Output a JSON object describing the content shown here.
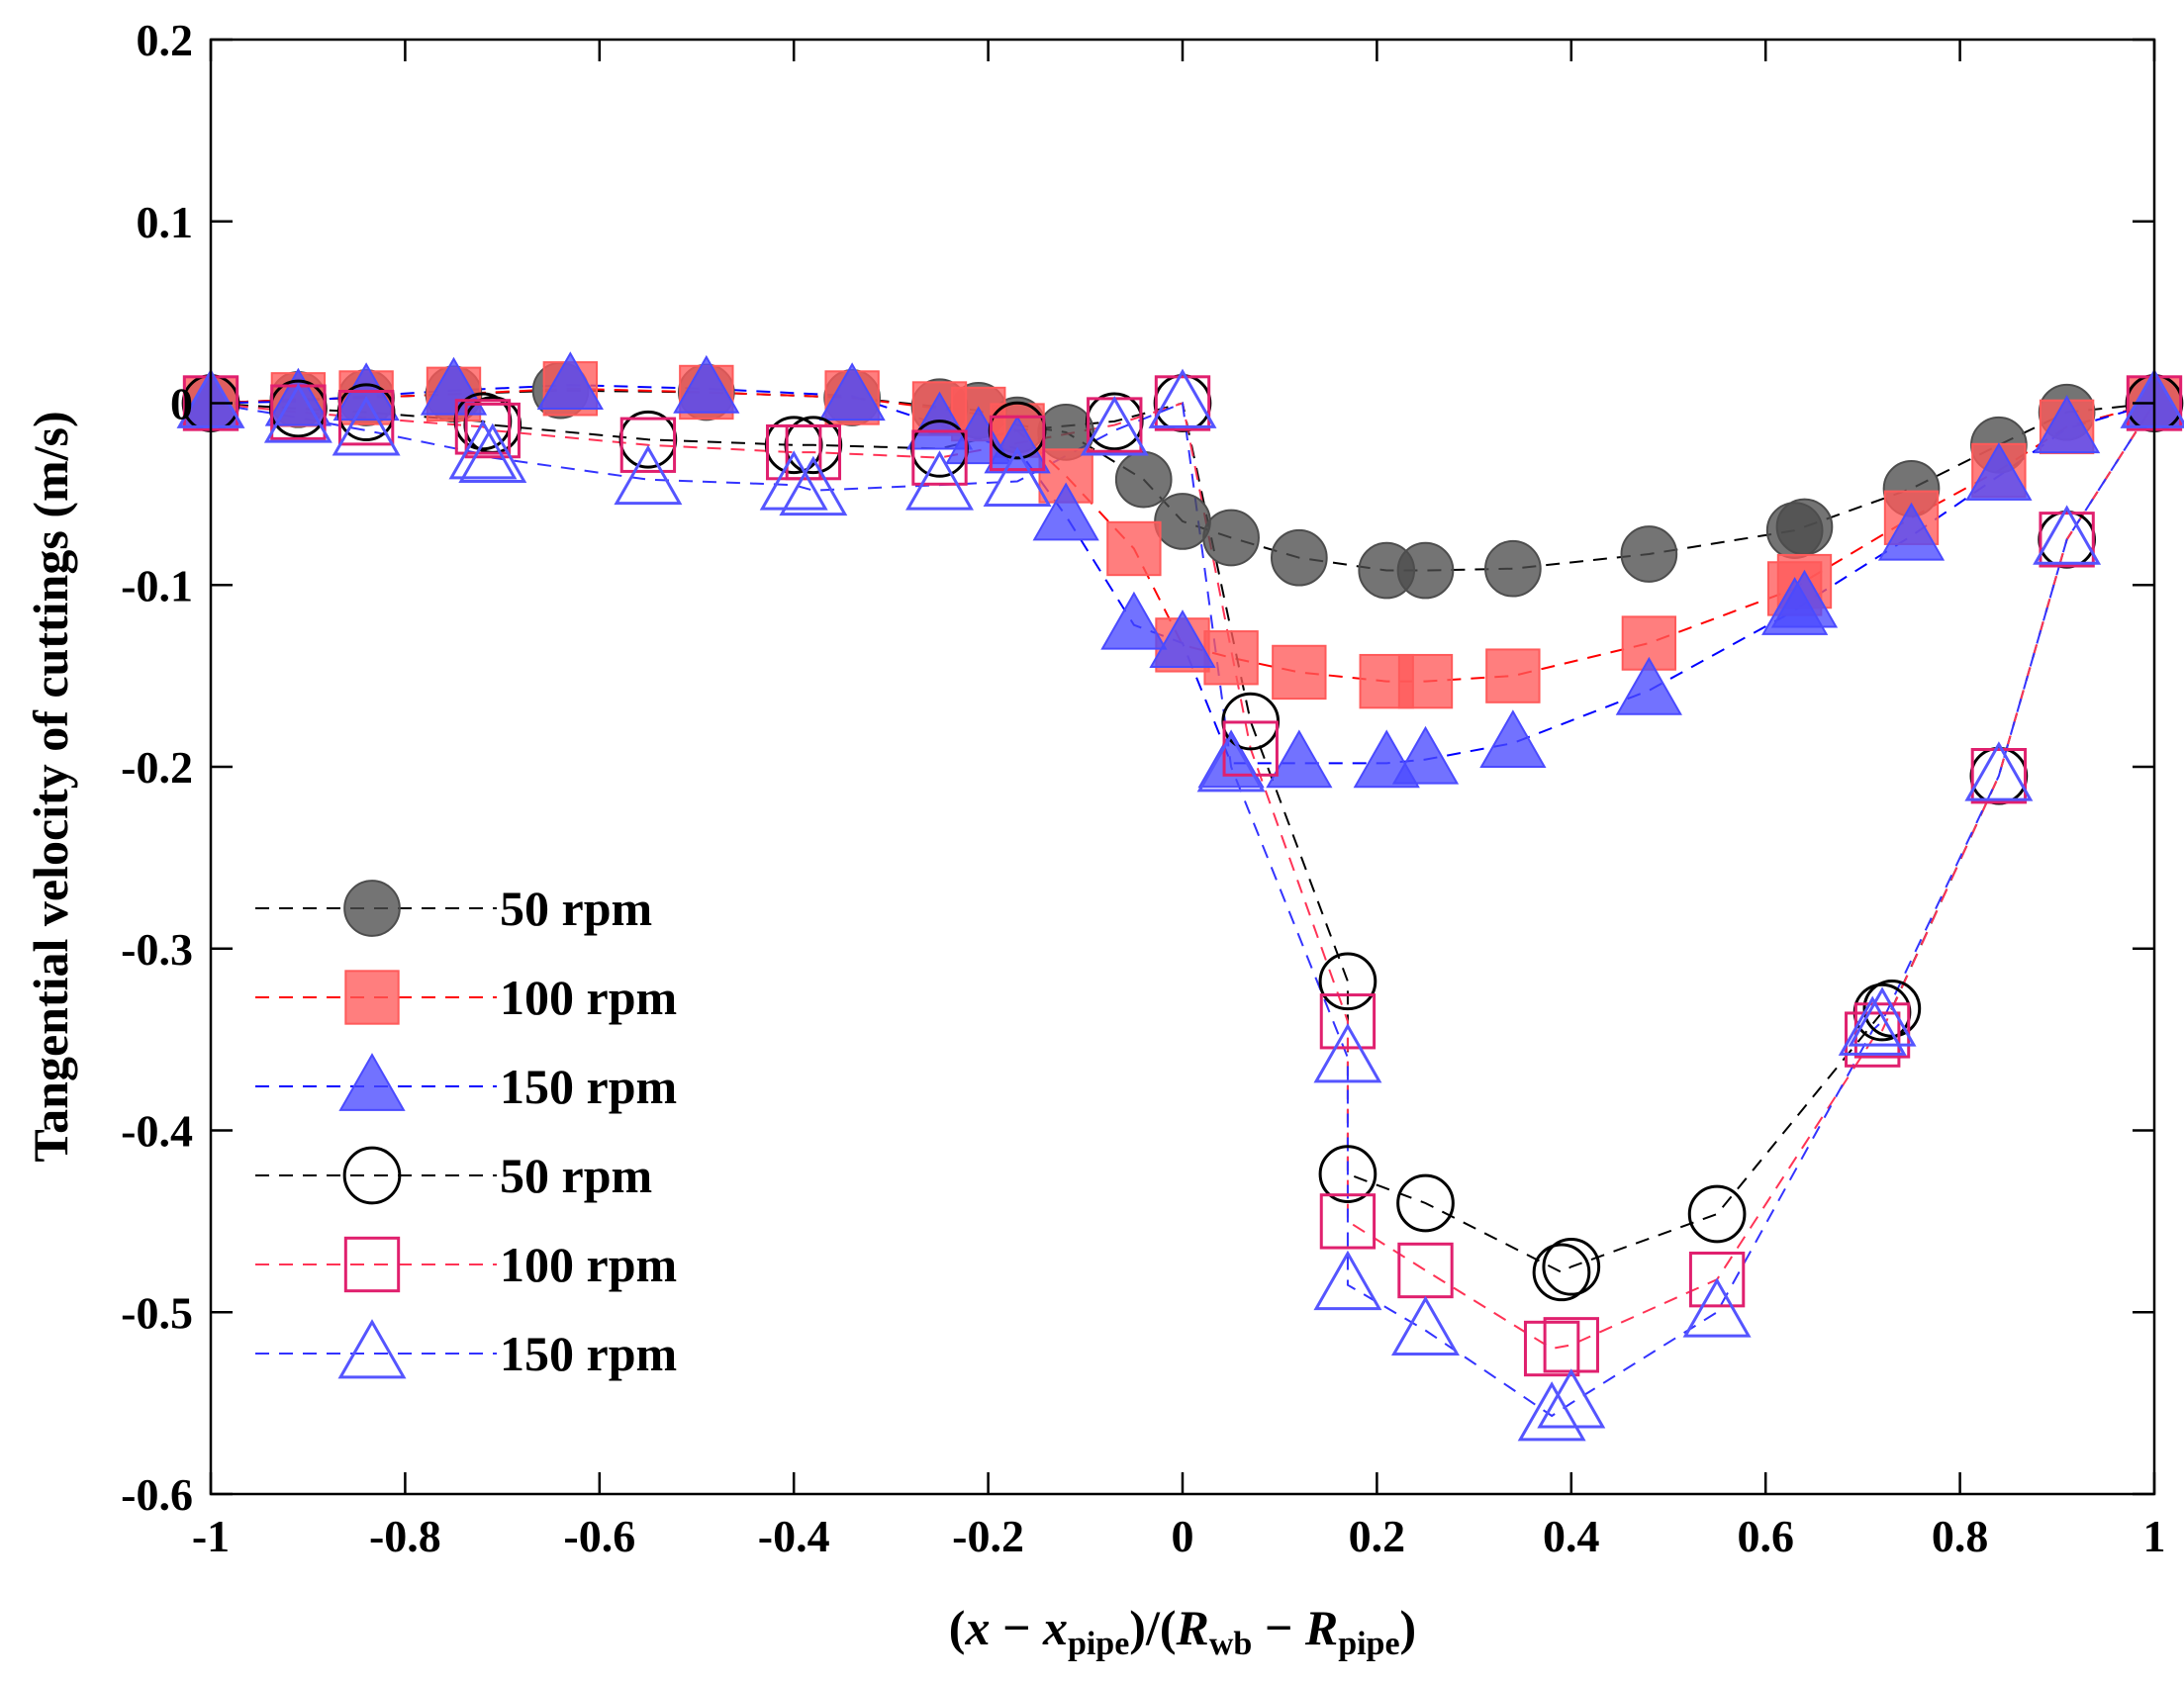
{
  "chart_data": {
    "type": "scatter",
    "title": "",
    "xlabel": {
      "parts": [
        {
          "t": "(",
          "italic": false,
          "sub": false
        },
        {
          "t": "x",
          "italic": true,
          "sub": false
        },
        {
          "t": " − ",
          "italic": false,
          "sub": false
        },
        {
          "t": "x",
          "italic": true,
          "sub": false
        },
        {
          "t": "pipe",
          "italic": false,
          "sub": true
        },
        {
          "t": ")/(",
          "italic": false,
          "sub": false
        },
        {
          "t": "R",
          "italic": true,
          "sub": false
        },
        {
          "t": "wb",
          "italic": false,
          "sub": true
        },
        {
          "t": " − ",
          "italic": false,
          "sub": false
        },
        {
          "t": "R",
          "italic": true,
          "sub": false
        },
        {
          "t": "pipe",
          "italic": false,
          "sub": true
        },
        {
          "t": ")",
          "italic": false,
          "sub": false
        }
      ]
    },
    "ylabel": "Tangential velocity of cuttings (m/s)",
    "xlim": [
      -1,
      1
    ],
    "ylim": [
      -0.6,
      0.2
    ],
    "xticks": [
      {
        "v": -1,
        "label": "-1"
      },
      {
        "v": -0.8,
        "label": "-0.8"
      },
      {
        "v": -0.6,
        "label": "-0.6"
      },
      {
        "v": -0.4,
        "label": "-0.4"
      },
      {
        "v": -0.2,
        "label": "-0.2"
      },
      {
        "v": 0,
        "label": "0"
      },
      {
        "v": 0.2,
        "label": "0.2"
      },
      {
        "v": 0.4,
        "label": "0.4"
      },
      {
        "v": 0.6,
        "label": "0.6"
      },
      {
        "v": 0.8,
        "label": "0.8"
      },
      {
        "v": 1,
        "label": "1"
      }
    ],
    "yticks": [
      {
        "v": 0.2,
        "label": "0.2"
      },
      {
        "v": 0.1,
        "label": "0.1"
      },
      {
        "v": 0,
        "label": "0"
      },
      {
        "v": -0.1,
        "label": "-0.1"
      },
      {
        "v": -0.2,
        "label": "-0.2"
      },
      {
        "v": -0.3,
        "label": "-0.3"
      },
      {
        "v": -0.4,
        "label": "-0.4"
      },
      {
        "v": -0.5,
        "label": "-0.5"
      },
      {
        "v": -0.6,
        "label": "-0.6"
      }
    ],
    "legend_position": "left-middle",
    "series": [
      {
        "name": "50 rpm",
        "marker": "circle",
        "filled": true,
        "line_color": "#000000",
        "marker_color": "#4d4d4d",
        "x": [
          -1,
          -0.91,
          -0.84,
          -0.75,
          -0.64,
          -0.49,
          -0.34,
          -0.25,
          -0.21,
          -0.17,
          -0.12,
          -0.04,
          0,
          0.05,
          0.12,
          0.21,
          0.25,
          0.34,
          0.48,
          0.63,
          0.64,
          0.75,
          0.84,
          0.91,
          1
        ],
        "y": [
          0,
          0.002,
          0.003,
          0.005,
          0.007,
          0.006,
          0.003,
          -0.002,
          -0.004,
          -0.012,
          -0.016,
          -0.042,
          -0.065,
          -0.074,
          -0.085,
          -0.092,
          -0.092,
          -0.091,
          -0.083,
          -0.07,
          -0.068,
          -0.047,
          -0.023,
          -0.005,
          0
        ]
      },
      {
        "name": "100 rpm",
        "marker": "square",
        "filled": true,
        "line_color": "#ff0000",
        "marker_color": "#ff5a5a",
        "x": [
          -1,
          -0.91,
          -0.84,
          -0.75,
          -0.63,
          -0.49,
          -0.34,
          -0.25,
          -0.21,
          -0.17,
          -0.12,
          -0.05,
          0,
          0.05,
          0.12,
          0.21,
          0.25,
          0.34,
          0.48,
          0.63,
          0.64,
          0.75,
          0.84,
          0.91,
          1
        ],
        "y": [
          0,
          0.002,
          0.003,
          0.005,
          0.008,
          0.006,
          0.003,
          -0.003,
          -0.006,
          -0.015,
          -0.04,
          -0.08,
          -0.133,
          -0.14,
          -0.148,
          -0.153,
          -0.153,
          -0.15,
          -0.132,
          -0.102,
          -0.098,
          -0.063,
          -0.037,
          -0.013,
          0
        ]
      },
      {
        "name": "150 rpm",
        "marker": "triangle",
        "filled": true,
        "line_color": "#0000ff",
        "marker_color": "#4a4aff",
        "x": [
          -1,
          -0.91,
          -0.84,
          -0.75,
          -0.63,
          -0.49,
          -0.34,
          -0.25,
          -0.21,
          -0.17,
          -0.12,
          -0.05,
          0,
          0.05,
          0.12,
          0.21,
          0.25,
          0.34,
          0.48,
          0.63,
          0.64,
          0.75,
          0.84,
          0.91,
          1
        ],
        "y": [
          0,
          0.001,
          0.004,
          0.007,
          0.01,
          0.008,
          0.004,
          -0.012,
          -0.02,
          -0.025,
          -0.062,
          -0.122,
          -0.132,
          -0.198,
          -0.198,
          -0.198,
          -0.196,
          -0.187,
          -0.158,
          -0.114,
          -0.11,
          -0.073,
          -0.04,
          -0.014,
          0
        ]
      },
      {
        "name": "50 rpm",
        "marker": "circle",
        "filled": false,
        "line_color": "#000000",
        "marker_color": "#000000",
        "x": [
          -1,
          -0.91,
          -0.84,
          -0.72,
          -0.71,
          -0.55,
          -0.4,
          -0.38,
          -0.25,
          -0.17,
          -0.07,
          0,
          0.07,
          0.17,
          0.17,
          0.25,
          0.39,
          0.4,
          0.55,
          0.72,
          0.73,
          0.84,
          0.91,
          1
        ],
        "y": [
          0,
          -0.003,
          -0.005,
          -0.01,
          -0.012,
          -0.02,
          -0.023,
          -0.023,
          -0.025,
          -0.015,
          -0.01,
          0,
          -0.175,
          -0.318,
          -0.424,
          -0.44,
          -0.478,
          -0.475,
          -0.446,
          -0.335,
          -0.333,
          -0.205,
          -0.075,
          0
        ]
      },
      {
        "name": "100 rpm",
        "marker": "square",
        "filled": false,
        "line_color": "#ff3355",
        "marker_color": "#e0206e",
        "x": [
          -1,
          -0.91,
          -0.84,
          -0.72,
          -0.71,
          -0.55,
          -0.4,
          -0.38,
          -0.25,
          -0.17,
          -0.07,
          0,
          0.07,
          0.17,
          0.17,
          0.25,
          0.38,
          0.4,
          0.55,
          0.71,
          0.72,
          0.84,
          0.91,
          1
        ],
        "y": [
          0,
          -0.005,
          -0.008,
          -0.013,
          -0.015,
          -0.023,
          -0.027,
          -0.027,
          -0.03,
          -0.022,
          -0.012,
          0,
          -0.19,
          -0.34,
          -0.45,
          -0.477,
          -0.52,
          -0.518,
          -0.482,
          -0.35,
          -0.345,
          -0.205,
          -0.075,
          0
        ]
      },
      {
        "name": "150 rpm",
        "marker": "triangle",
        "filled": false,
        "line_color": "#3333ff",
        "marker_color": "#5555ff",
        "x": [
          -1,
          -0.91,
          -0.84,
          -0.72,
          -0.71,
          -0.55,
          -0.4,
          -0.38,
          -0.25,
          -0.17,
          -0.07,
          0,
          0.05,
          0.17,
          0.17,
          0.25,
          0.38,
          0.4,
          0.55,
          0.71,
          0.72,
          0.84,
          0.91,
          1
        ],
        "y": [
          0,
          -0.008,
          -0.015,
          -0.028,
          -0.03,
          -0.042,
          -0.045,
          -0.048,
          -0.045,
          -0.043,
          -0.015,
          0,
          -0.2,
          -0.36,
          -0.485,
          -0.51,
          -0.557,
          -0.55,
          -0.5,
          -0.345,
          -0.34,
          -0.205,
          -0.075,
          0
        ]
      }
    ]
  }
}
